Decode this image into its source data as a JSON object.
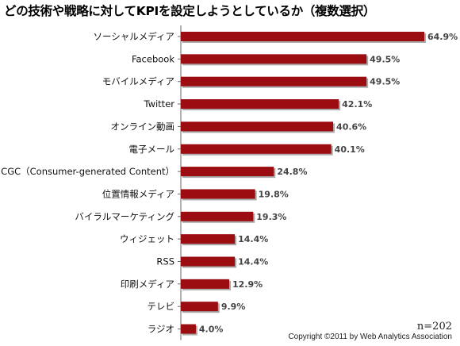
{
  "chart_data": {
    "type": "bar",
    "orientation": "horizontal",
    "title": "どの技術や戦略に対してKPIを設定しようとしているか（複数選択）",
    "categories": [
      "ソーシャルメディア",
      "Facebook",
      "モバイルメディア",
      "Twitter",
      "オンライン動画",
      "電子メール",
      "CGC（Consumer-generated Content）",
      "位置情報メディア",
      "バイラルマーケティング",
      "ウィジェット",
      "RSS",
      "印刷メディア",
      "テレビ",
      "ラジオ"
    ],
    "values": [
      64.9,
      49.5,
      49.5,
      42.1,
      40.6,
      40.1,
      24.8,
      19.8,
      19.3,
      14.4,
      14.4,
      12.9,
      9.9,
      4.0
    ],
    "value_labels": [
      "64.9%",
      "49.5%",
      "49.5%",
      "42.1%",
      "40.6%",
      "40.1%",
      "24.8%",
      "19.8%",
      "19.3%",
      "14.4%",
      "14.4%",
      "12.9%",
      "9.9%",
      "4.0%"
    ],
    "xlim": [
      0,
      70
    ],
    "grid": false,
    "bar_color": "#9c0d12",
    "bar_shadow_color": "#aaaaaa"
  },
  "sample_size": "n=202",
  "copyright": "Copyright ©2011 by Web Analytics Association"
}
